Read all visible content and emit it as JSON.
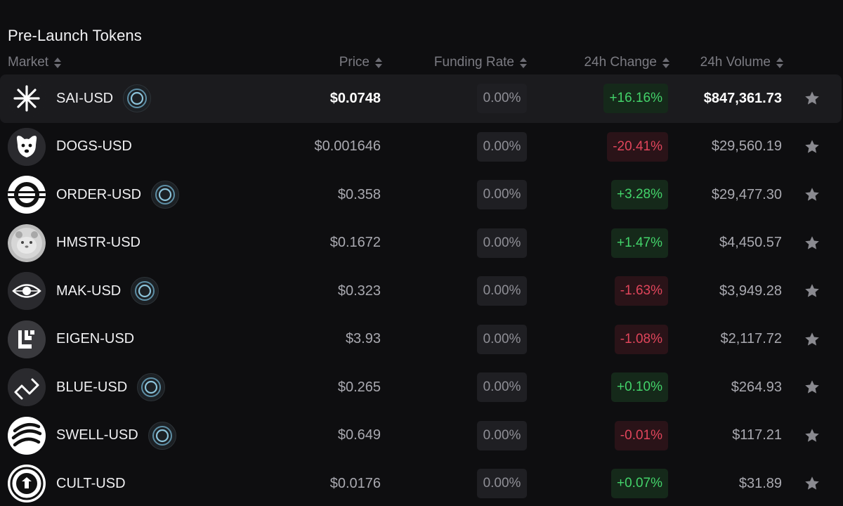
{
  "title": "Pre-Launch Tokens",
  "columns": {
    "market": "Market",
    "price": "Price",
    "funding": "Funding Rate",
    "change": "24h Change",
    "volume": "24h Volume"
  },
  "colors": {
    "positive": "#43d36a",
    "negative": "#e0455b",
    "selected_row": "#1b1b1e"
  },
  "rows": [
    {
      "market": "SAI-USD",
      "logo": "sai-logo",
      "badge": true,
      "price": "$0.0748",
      "funding": "0.00%",
      "change": "+16.16%",
      "direction": "pos",
      "volume": "$847,361.73",
      "selected": true
    },
    {
      "market": "DOGS-USD",
      "logo": "dogs-logo",
      "badge": false,
      "price": "$0.001646",
      "funding": "0.00%",
      "change": "-20.41%",
      "direction": "neg",
      "volume": "$29,560.19"
    },
    {
      "market": "ORDER-USD",
      "logo": "order-logo",
      "badge": true,
      "price": "$0.358",
      "funding": "0.00%",
      "change": "+3.28%",
      "direction": "pos",
      "volume": "$29,477.30"
    },
    {
      "market": "HMSTR-USD",
      "logo": "hmstr-logo",
      "badge": false,
      "price": "$0.1672",
      "funding": "0.00%",
      "change": "+1.47%",
      "direction": "pos",
      "volume": "$4,450.57"
    },
    {
      "market": "MAK-USD",
      "logo": "mak-logo",
      "badge": true,
      "price": "$0.323",
      "funding": "0.00%",
      "change": "-1.63%",
      "direction": "neg",
      "volume": "$3,949.28"
    },
    {
      "market": "EIGEN-USD",
      "logo": "eigen-logo",
      "badge": false,
      "price": "$3.93",
      "funding": "0.00%",
      "change": "-1.08%",
      "direction": "neg",
      "volume": "$2,117.72"
    },
    {
      "market": "BLUE-USD",
      "logo": "blue-logo",
      "badge": true,
      "price": "$0.265",
      "funding": "0.00%",
      "change": "+0.10%",
      "direction": "pos",
      "volume": "$264.93"
    },
    {
      "market": "SWELL-USD",
      "logo": "swell-logo",
      "badge": true,
      "price": "$0.649",
      "funding": "0.00%",
      "change": "-0.01%",
      "direction": "neg",
      "volume": "$117.21"
    },
    {
      "market": "CULT-USD",
      "logo": "cult-logo",
      "badge": false,
      "price": "$0.0176",
      "funding": "0.00%",
      "change": "+0.07%",
      "direction": "pos",
      "volume": "$31.89"
    }
  ]
}
